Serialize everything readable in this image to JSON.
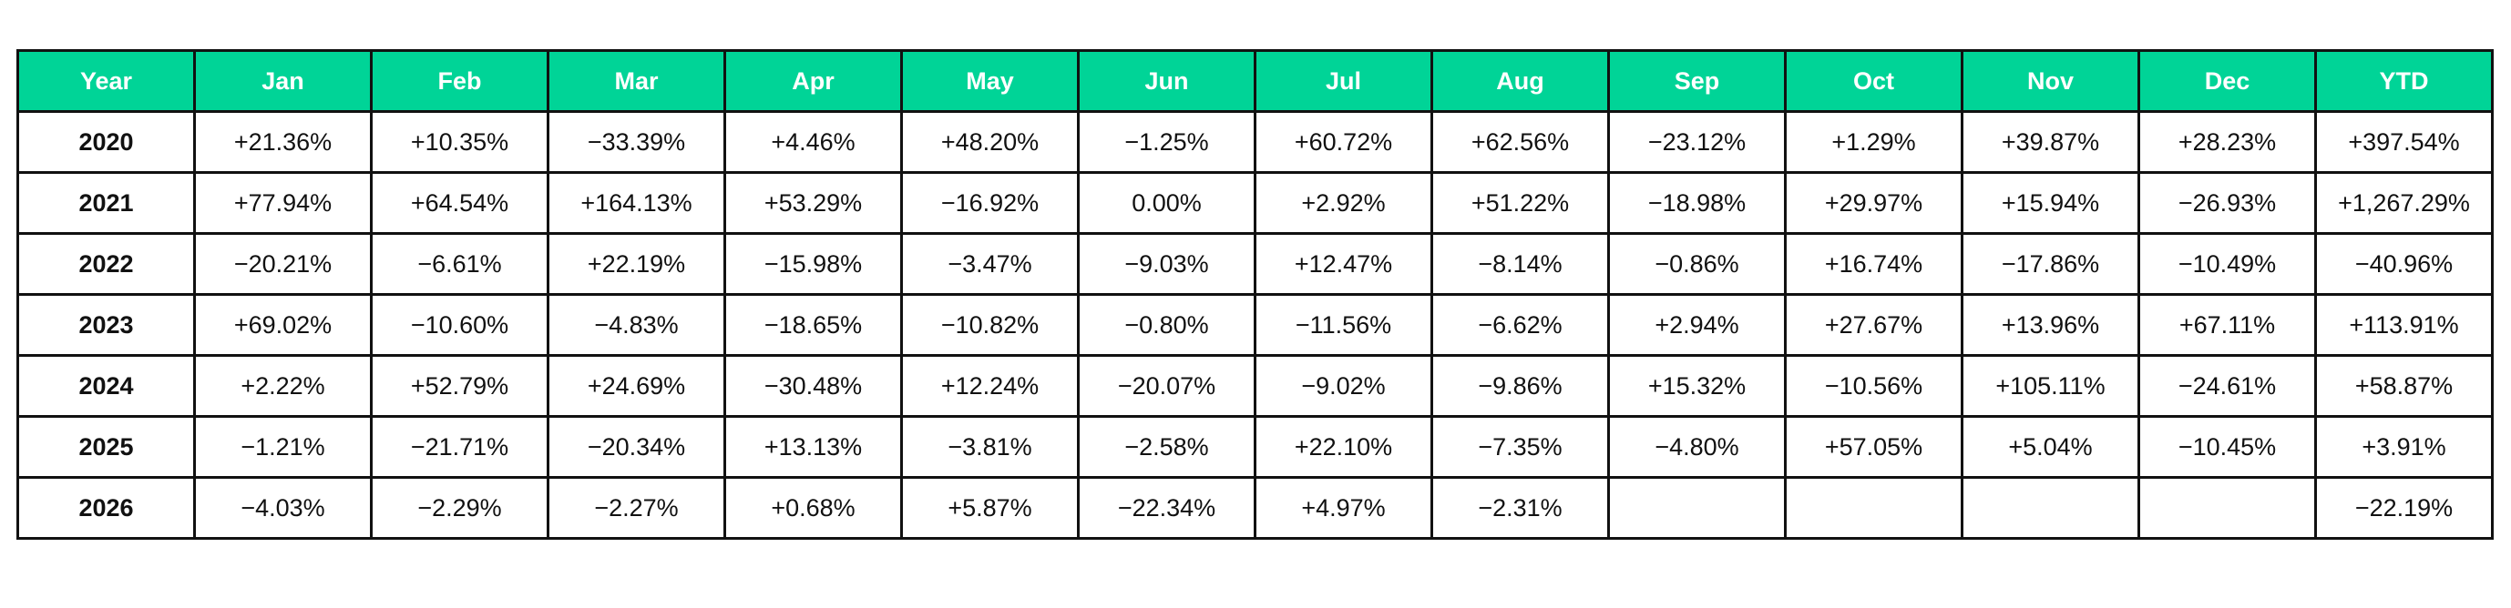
{
  "table": {
    "header": [
      "Year",
      "Jan",
      "Feb",
      "Mar",
      "Apr",
      "May",
      "Jun",
      "Jul",
      "Aug",
      "Sep",
      "Oct",
      "Nov",
      "Dec",
      "YTD"
    ],
    "rows": [
      [
        "2020",
        "+21.36%",
        "+10.35%",
        "−33.39%",
        "+4.46%",
        "+48.20%",
        "−1.25%",
        "+60.72%",
        "+62.56%",
        "−23.12%",
        "+1.29%",
        "+39.87%",
        "+28.23%",
        "+397.54%"
      ],
      [
        "2021",
        "+77.94%",
        "+64.54%",
        "+164.13%",
        "+53.29%",
        "−16.92%",
        "0.00%",
        "+2.92%",
        "+51.22%",
        "−18.98%",
        "+29.97%",
        "+15.94%",
        "−26.93%",
        "+1,267.29%"
      ],
      [
        "2022",
        "−20.21%",
        "−6.61%",
        "+22.19%",
        "−15.98%",
        "−3.47%",
        "−9.03%",
        "+12.47%",
        "−8.14%",
        "−0.86%",
        "+16.74%",
        "−17.86%",
        "−10.49%",
        "−40.96%"
      ],
      [
        "2023",
        "+69.02%",
        "−10.60%",
        "−4.83%",
        "−18.65%",
        "−10.82%",
        "−0.80%",
        "−11.56%",
        "−6.62%",
        "+2.94%",
        "+27.67%",
        "+13.96%",
        "+67.11%",
        "+113.91%"
      ],
      [
        "2024",
        "+2.22%",
        "+52.79%",
        "+24.69%",
        "−30.48%",
        "+12.24%",
        "−20.07%",
        "−9.02%",
        "−9.86%",
        "+15.32%",
        "−10.56%",
        "+105.11%",
        "−24.61%",
        "+58.87%"
      ],
      [
        "2025",
        "−1.21%",
        "−21.71%",
        "−20.34%",
        "+13.13%",
        "−3.81%",
        "−2.58%",
        "+22.10%",
        "−7.35%",
        "−4.80%",
        "+57.05%",
        "+5.04%",
        "−10.45%",
        "+3.91%"
      ],
      [
        "2026",
        "−4.03%",
        "−2.29%",
        "−2.27%",
        "+0.68%",
        "+5.87%",
        "−22.34%",
        "+4.97%",
        "−2.31%",
        null,
        null,
        null,
        null,
        "−22.19%"
      ]
    ]
  }
}
